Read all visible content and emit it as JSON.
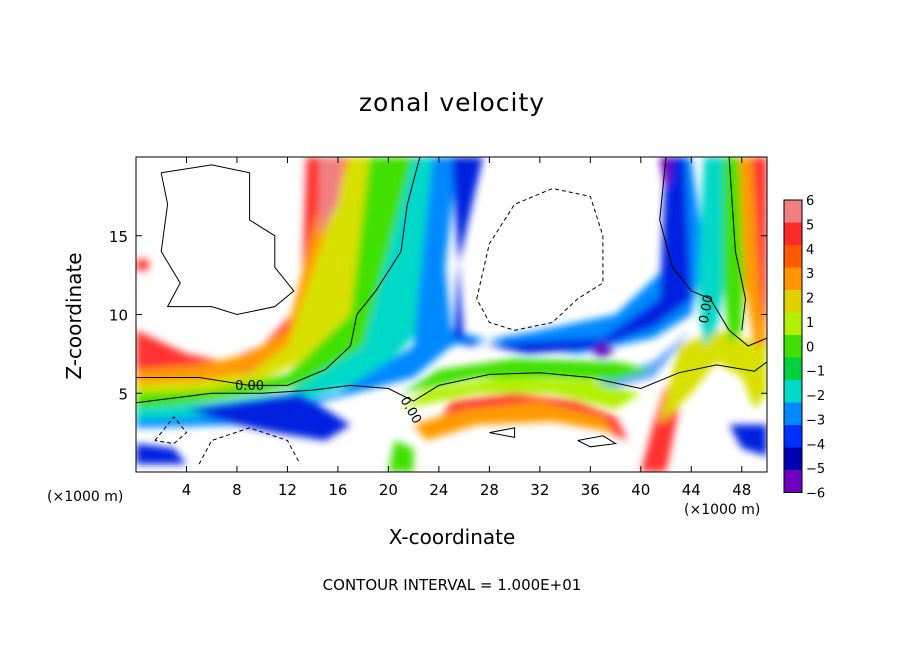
{
  "chart_data": {
    "type": "heatmap",
    "title": "zonal velocity",
    "xlabel": "X-coordinate",
    "ylabel": "Z-coordinate",
    "x_unit_note": "(×1000 m)",
    "x_unit_note_right": "(×1000 m)",
    "footer": "CONTOUR INTERVAL = 1.000E+01",
    "xlim": [
      0,
      50
    ],
    "ylim": [
      0,
      20
    ],
    "x_ticks": [
      4,
      8,
      12,
      16,
      20,
      24,
      28,
      32,
      36,
      40,
      44,
      48
    ],
    "y_ticks": [
      5,
      10,
      15
    ],
    "colorbar": {
      "levels": [
        6,
        5,
        4,
        3,
        2,
        1,
        0,
        -1,
        -2,
        -3,
        -4,
        -5,
        -6
      ],
      "colors": [
        "#f08080",
        "#ff2a2a",
        "#ff5a00",
        "#ff9600",
        "#e0d000",
        "#b0f000",
        "#40e000",
        "#00d040",
        "#00d8c8",
        "#0088ff",
        "#0030ff",
        "#0000b0",
        "#7000c0"
      ]
    },
    "contour_labels": [
      {
        "text": "0.00",
        "x": 9,
        "y": 5.2
      },
      {
        "text": "0.00",
        "x": 21.5,
        "y": 3.8
      },
      {
        "text": "0.00",
        "x": 45.5,
        "y": 10.3
      }
    ]
  }
}
